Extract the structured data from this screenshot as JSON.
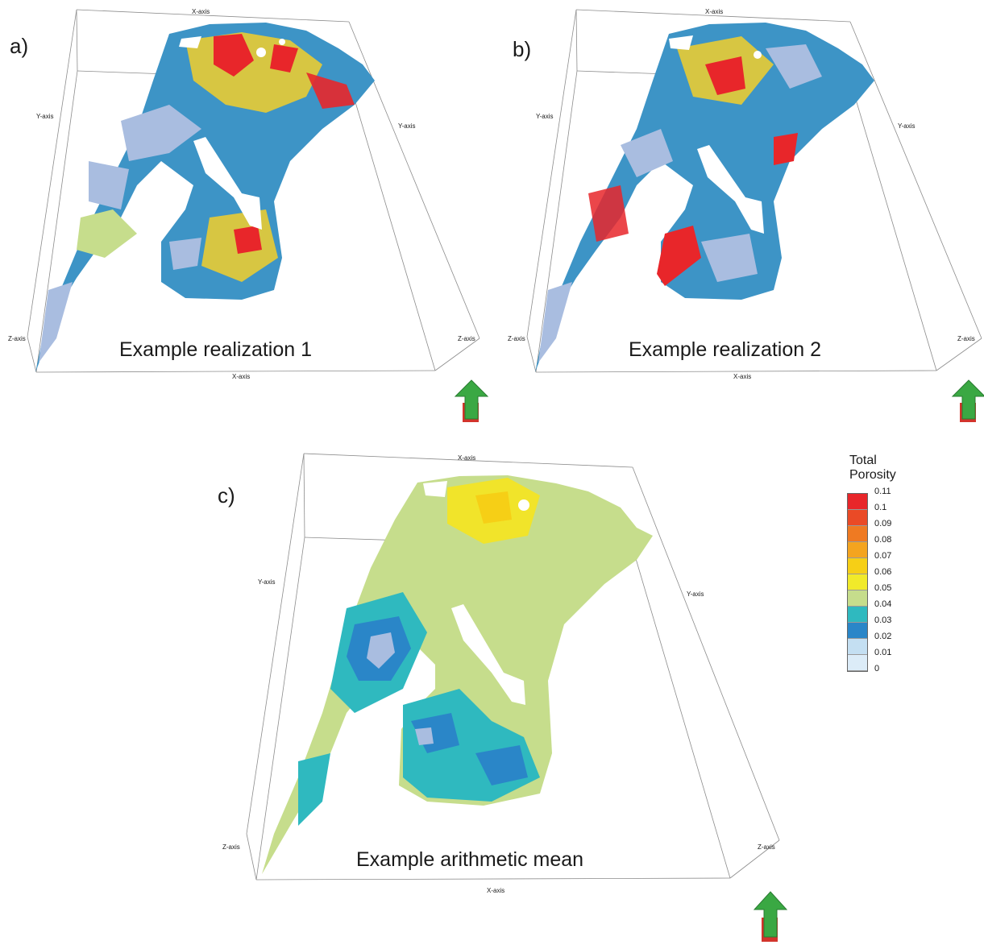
{
  "panels": [
    {
      "letter": "a)",
      "caption": "Example realization 1",
      "axes": {
        "x_top": "X-axis",
        "x_bottom": "X-axis",
        "y_left": "Y-axis",
        "y_right": "Y-axis",
        "z_left": "Z-axis",
        "z_right": "Z-axis"
      }
    },
    {
      "letter": "b)",
      "caption": "Example realization 2",
      "axes": {
        "x_top": "X-axis",
        "x_bottom": "X-axis",
        "y_left": "Y-axis",
        "y_right": "Y-axis",
        "z_left": "Z-axis",
        "z_right": "Z-axis"
      }
    },
    {
      "letter": "c)",
      "caption": "Example arithmetic mean",
      "axes": {
        "x_top": "X-axis",
        "x_bottom": "X-axis",
        "y_left": "Y-axis",
        "y_right": "Y-axis",
        "z_left": "Z-axis",
        "z_right": "Z-axis"
      }
    }
  ],
  "legend": {
    "title_line1": "Total",
    "title_line2": "Porosity",
    "ticks": [
      "0.11",
      "0.1",
      "0.09",
      "0.08",
      "0.07",
      "0.06",
      "0.05",
      "0.04",
      "0.03",
      "0.02",
      "0.01",
      "0"
    ],
    "colors": [
      "#e8262a",
      "#ea4a26",
      "#ef7a22",
      "#f4a41f",
      "#f6cf16",
      "#f1ea2a",
      "#c6dd8c",
      "#2fb9bf",
      "#2a86c8",
      "#c4dff2",
      "#dcecf8"
    ]
  },
  "icons": {
    "compass": "north-arrow-icon"
  },
  "colors": {
    "frame": "#8c8c8c",
    "arrow_green": "#3aa843",
    "arrow_red": "#d2342c",
    "void": "#ffffff"
  }
}
